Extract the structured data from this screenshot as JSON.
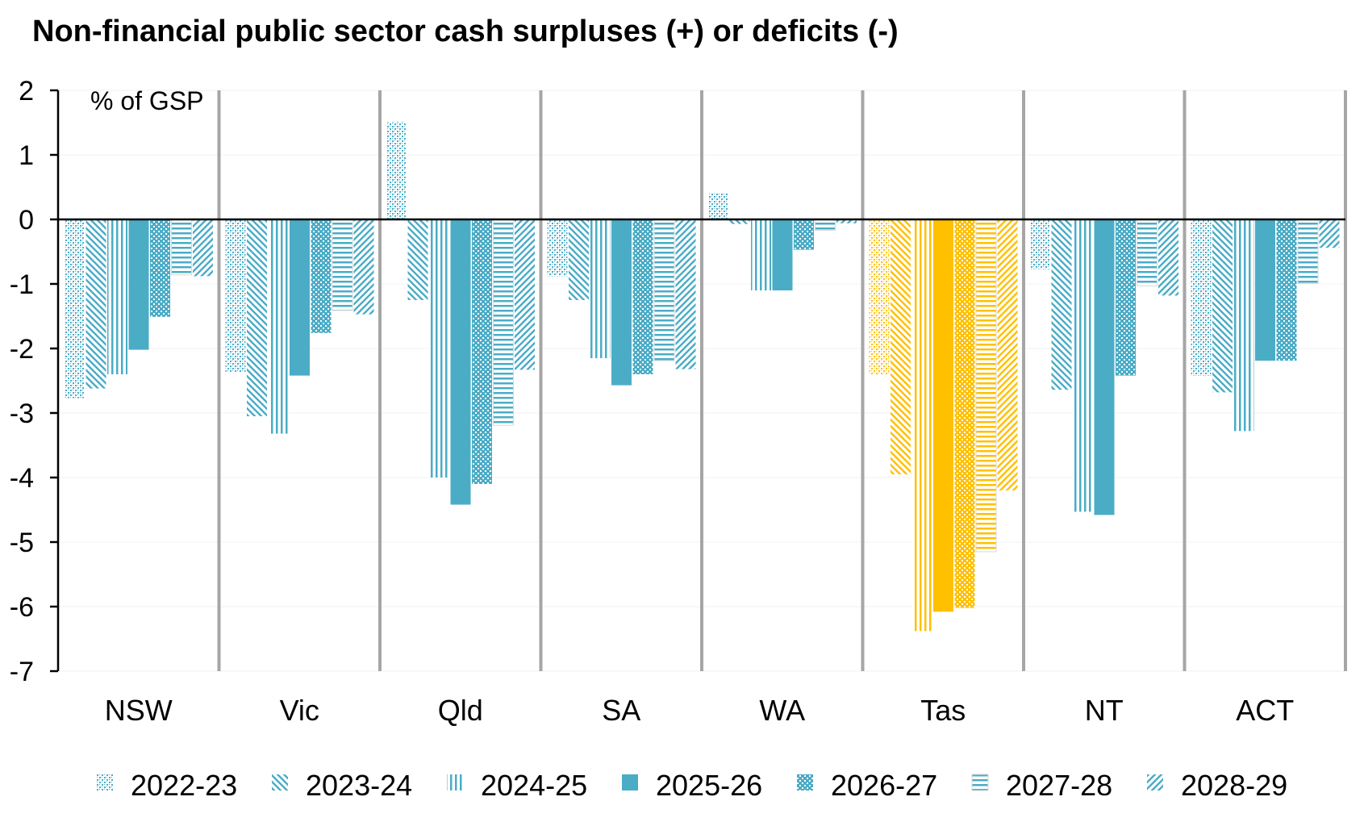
{
  "chart_data": {
    "type": "bar",
    "title": "Non-financial public sector cash surpluses (+) or deficits (-)",
    "ylabel": "% of GSP",
    "xlabel": "",
    "ylim": [
      -7,
      2
    ],
    "yticks": [
      "2",
      "1",
      "0",
      "-1",
      "-2",
      "-3",
      "-4",
      "-5",
      "-6",
      "-7"
    ],
    "categories": [
      "NSW",
      "Vic",
      "Qld",
      "SA",
      "WA",
      "Tas",
      "NT",
      "ACT"
    ],
    "highlight_category": "Tas",
    "colors": {
      "default": "#4BACC6",
      "highlight": "#FFC000",
      "axis": "#000000",
      "divider": "#A6A6A6",
      "grid": "#F2F2F2"
    },
    "legend_position": "bottom",
    "series": [
      {
        "name": "2022-23",
        "pattern": "checker",
        "values": [
          -2.77,
          -2.37,
          1.51,
          -0.88,
          0.41,
          -2.41,
          -0.77,
          -2.42
        ]
      },
      {
        "name": "2023-24",
        "pattern": "diag-down",
        "values": [
          -2.62,
          -3.05,
          -1.25,
          -1.25,
          -0.07,
          -3.95,
          -2.64,
          -2.68
        ]
      },
      {
        "name": "2024-25",
        "pattern": "vertical",
        "values": [
          -2.4,
          -3.32,
          -4.0,
          -2.15,
          -1.1,
          -6.38,
          -4.53,
          -3.28
        ]
      },
      {
        "name": "2025-26",
        "pattern": "solid",
        "values": [
          -2.02,
          -2.42,
          -4.42,
          -2.57,
          -1.1,
          -6.08,
          -4.58,
          -2.19
        ]
      },
      {
        "name": "2026-27",
        "pattern": "dots",
        "values": [
          -1.51,
          -1.76,
          -4.1,
          -2.4,
          -0.47,
          -6.02,
          -2.42,
          -2.19
        ]
      },
      {
        "name": "2027-28",
        "pattern": "horizontal",
        "values": [
          -0.86,
          -1.41,
          -3.19,
          -2.19,
          -0.17,
          -5.15,
          -1.03,
          -0.99
        ]
      },
      {
        "name": "2028-29",
        "pattern": "diag-up",
        "values": [
          -0.88,
          -1.47,
          -2.33,
          -2.32,
          -0.06,
          -4.2,
          -1.18,
          -0.44
        ]
      }
    ]
  }
}
